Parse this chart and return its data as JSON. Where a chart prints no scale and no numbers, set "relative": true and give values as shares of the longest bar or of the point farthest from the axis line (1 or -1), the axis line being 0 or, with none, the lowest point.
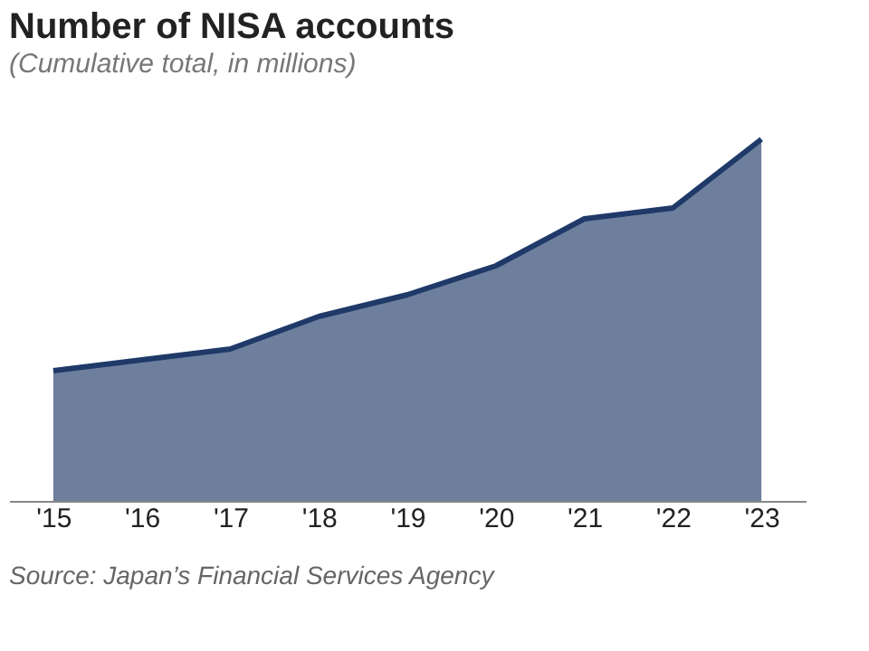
{
  "chart_data": {
    "type": "area",
    "title": "Number of NISA accounts",
    "subtitle": "(Cumulative total, in millions)",
    "relative": true,
    "categories": [
      "'15",
      "'16",
      "'17",
      "'18",
      "'19",
      "'20",
      "'21",
      "'22",
      "'23"
    ],
    "series": [
      {
        "color": "#1f3a68",
        "values": [
          0.36,
          0.39,
          0.42,
          0.51,
          0.57,
          0.65,
          0.78,
          0.81,
          1
        ]
      }
    ],
    "annotations": [
      "Source: Japan’s Financial Services Agency"
    ]
  }
}
